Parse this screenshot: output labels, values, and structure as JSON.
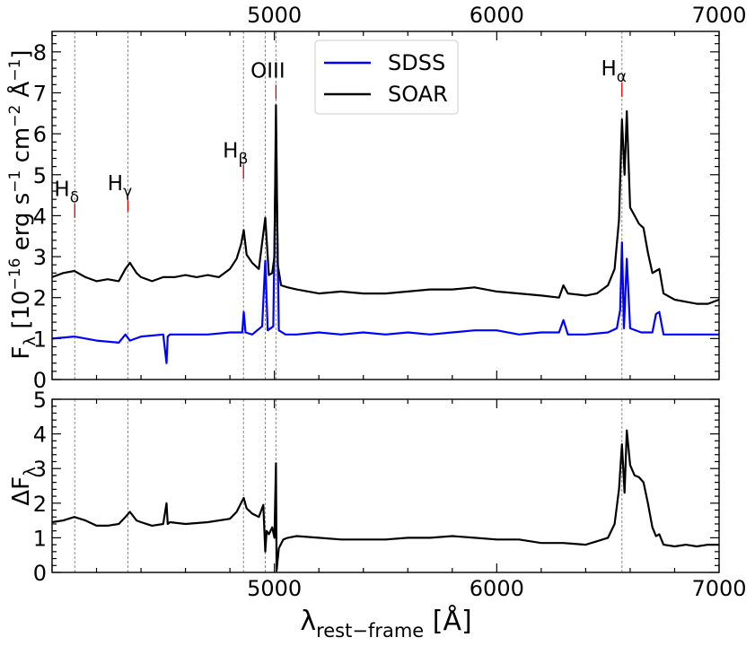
{
  "chart_data": [
    {
      "type": "line",
      "panel": "top",
      "xlim": [
        4000,
        7000
      ],
      "ylim": [
        0,
        8.5
      ],
      "ylabel": "F_λ [10^-16 erg s^-1 cm^-2 Å^-1]",
      "ylabel_parts": {
        "main": "F",
        "sub": "λ",
        "unit_a": " [10",
        "exp1": "−16",
        "unit_b": " erg s",
        "exp2": "−1",
        "unit_c": " cm",
        "exp3": "−2",
        "unit_d": " Å",
        "exp4": "−1",
        "unit_e": "]"
      },
      "top_axis_ticks": [
        "5000",
        "6000",
        "7000"
      ],
      "y_ticks": [
        "0",
        "1",
        "2",
        "3",
        "4",
        "5",
        "6",
        "7",
        "8"
      ],
      "legend": {
        "location": "upper center",
        "entries": [
          "SDSS",
          "SOAR"
        ]
      },
      "annotations": [
        {
          "text": "Hδ",
          "base": "H",
          "sub": "δ",
          "x": 4102,
          "y": 4.3
        },
        {
          "text": "Hγ",
          "base": "H",
          "sub": "γ",
          "x": 4341,
          "y": 4.45
        },
        {
          "text": "Hβ",
          "base": "H",
          "sub": "β",
          "x": 4861,
          "y": 5.25
        },
        {
          "text": "OIII",
          "base": "OIII",
          "sub": "",
          "x": 5007,
          "y": 7.2
        },
        {
          "text": "Hα",
          "base": "H",
          "sub": "α",
          "x": 6563,
          "y": 7.25
        }
      ],
      "marker_lines_x": [
        4102,
        4341,
        4861,
        4959,
        5007,
        6563
      ],
      "series": [
        {
          "name": "SDSS",
          "color": "#0000ff",
          "x": [
            4000,
            4100,
            4200,
            4300,
            4330,
            4350,
            4400,
            4500,
            4515,
            4520,
            4530,
            4600,
            4700,
            4800,
            4855,
            4862,
            4870,
            4900,
            4945,
            4959,
            4970,
            4995,
            5007,
            5020,
            5050,
            5100,
            5200,
            5300,
            5400,
            5500,
            5600,
            5700,
            5800,
            5900,
            6000,
            6100,
            6200,
            6280,
            6300,
            6320,
            6400,
            6500,
            6540,
            6555,
            6563,
            6572,
            6585,
            6600,
            6650,
            6700,
            6716,
            6731,
            6750,
            6800,
            6900,
            7000
          ],
          "y": [
            1.0,
            1.05,
            0.95,
            0.9,
            1.1,
            0.95,
            1.05,
            1.1,
            0.4,
            1.05,
            1.1,
            1.1,
            1.1,
            1.15,
            1.15,
            1.65,
            1.15,
            1.1,
            1.3,
            2.9,
            1.2,
            1.3,
            5.9,
            1.2,
            1.1,
            1.1,
            1.15,
            1.1,
            1.15,
            1.1,
            1.15,
            1.1,
            1.15,
            1.2,
            1.2,
            1.1,
            1.15,
            1.15,
            1.45,
            1.1,
            1.1,
            1.15,
            1.25,
            1.7,
            3.35,
            1.25,
            2.95,
            1.25,
            1.15,
            1.15,
            1.6,
            1.65,
            1.1,
            1.1,
            1.1,
            1.1
          ]
        },
        {
          "name": "SOAR",
          "color": "#000000",
          "x": [
            4000,
            4050,
            4100,
            4150,
            4200,
            4250,
            4300,
            4330,
            4350,
            4380,
            4400,
            4450,
            4500,
            4550,
            4600,
            4650,
            4700,
            4750,
            4800,
            4830,
            4850,
            4862,
            4875,
            4900,
            4930,
            4959,
            4975,
            4990,
            5000,
            5007,
            5015,
            5030,
            5060,
            5100,
            5200,
            5300,
            5400,
            5500,
            5600,
            5700,
            5800,
            5900,
            6000,
            6100,
            6200,
            6280,
            6300,
            6320,
            6400,
            6450,
            6500,
            6530,
            6550,
            6563,
            6575,
            6585,
            6600,
            6620,
            6640,
            6660,
            6680,
            6700,
            6716,
            6731,
            6750,
            6800,
            6850,
            6900,
            6950,
            7000
          ],
          "y": [
            2.5,
            2.6,
            2.65,
            2.5,
            2.4,
            2.45,
            2.4,
            2.7,
            2.85,
            2.6,
            2.5,
            2.4,
            2.5,
            2.5,
            2.55,
            2.5,
            2.55,
            2.5,
            2.7,
            2.95,
            3.3,
            3.65,
            3.05,
            2.85,
            2.7,
            3.95,
            2.55,
            2.6,
            3.0,
            6.7,
            2.8,
            2.3,
            2.25,
            2.2,
            2.1,
            2.15,
            2.1,
            2.1,
            2.15,
            2.2,
            2.2,
            2.25,
            2.15,
            2.1,
            2.05,
            2.0,
            2.3,
            2.1,
            2.05,
            2.1,
            2.3,
            2.7,
            3.9,
            6.35,
            5.0,
            6.55,
            4.2,
            4.0,
            3.8,
            3.7,
            3.1,
            2.6,
            2.65,
            2.7,
            2.1,
            1.95,
            1.9,
            1.85,
            1.85,
            1.95
          ]
        }
      ]
    },
    {
      "type": "line",
      "panel": "bottom",
      "xlim": [
        4000,
        7000
      ],
      "ylim": [
        0,
        5
      ],
      "ylabel": "ΔF_λ",
      "ylabel_parts": {
        "main": "ΔF",
        "sub": "λ"
      },
      "xlabel": "λ_rest−frame [Å]",
      "xlabel_parts": {
        "main": "λ",
        "sub": "rest−frame",
        "unit": " [Å]"
      },
      "x_ticks": [
        "5000",
        "6000",
        "7000"
      ],
      "y_ticks": [
        "0",
        "1",
        "2",
        "3",
        "4",
        "5"
      ],
      "marker_lines_x": [
        4102,
        4341,
        4861,
        4959,
        5007,
        6563
      ],
      "series": [
        {
          "color": "#000000",
          "x": [
            4000,
            4050,
            4100,
            4150,
            4200,
            4250,
            4300,
            4330,
            4350,
            4380,
            4400,
            4450,
            4500,
            4515,
            4520,
            4530,
            4600,
            4700,
            4800,
            4830,
            4850,
            4862,
            4875,
            4900,
            4930,
            4950,
            4959,
            4965,
            4975,
            4990,
            5000,
            5007,
            5010,
            5020,
            5040,
            5060,
            5100,
            5200,
            5300,
            5400,
            5500,
            5600,
            5700,
            5800,
            5900,
            6000,
            6100,
            6200,
            6300,
            6400,
            6450,
            6500,
            6530,
            6550,
            6563,
            6575,
            6585,
            6600,
            6620,
            6640,
            6660,
            6680,
            6700,
            6716,
            6731,
            6750,
            6800,
            6850,
            6900,
            6950,
            7000
          ],
          "y": [
            1.45,
            1.5,
            1.6,
            1.5,
            1.35,
            1.35,
            1.4,
            1.6,
            1.75,
            1.5,
            1.45,
            1.35,
            1.4,
            2.0,
            1.4,
            1.45,
            1.4,
            1.45,
            1.55,
            1.75,
            2.0,
            2.15,
            1.85,
            1.7,
            1.6,
            1.95,
            0.6,
            1.2,
            1.1,
            1.3,
            1.0,
            3.15,
            0.05,
            0.7,
            0.95,
            1.0,
            1.05,
            1.0,
            0.95,
            0.95,
            0.95,
            1.0,
            1.0,
            1.05,
            1.0,
            0.95,
            0.95,
            0.85,
            0.85,
            0.8,
            0.9,
            1.0,
            1.4,
            2.4,
            3.7,
            2.3,
            4.1,
            3.1,
            2.8,
            2.75,
            2.6,
            2.0,
            1.3,
            1.05,
            1.1,
            0.8,
            0.75,
            0.8,
            0.75,
            0.8,
            0.8
          ]
        }
      ]
    }
  ]
}
